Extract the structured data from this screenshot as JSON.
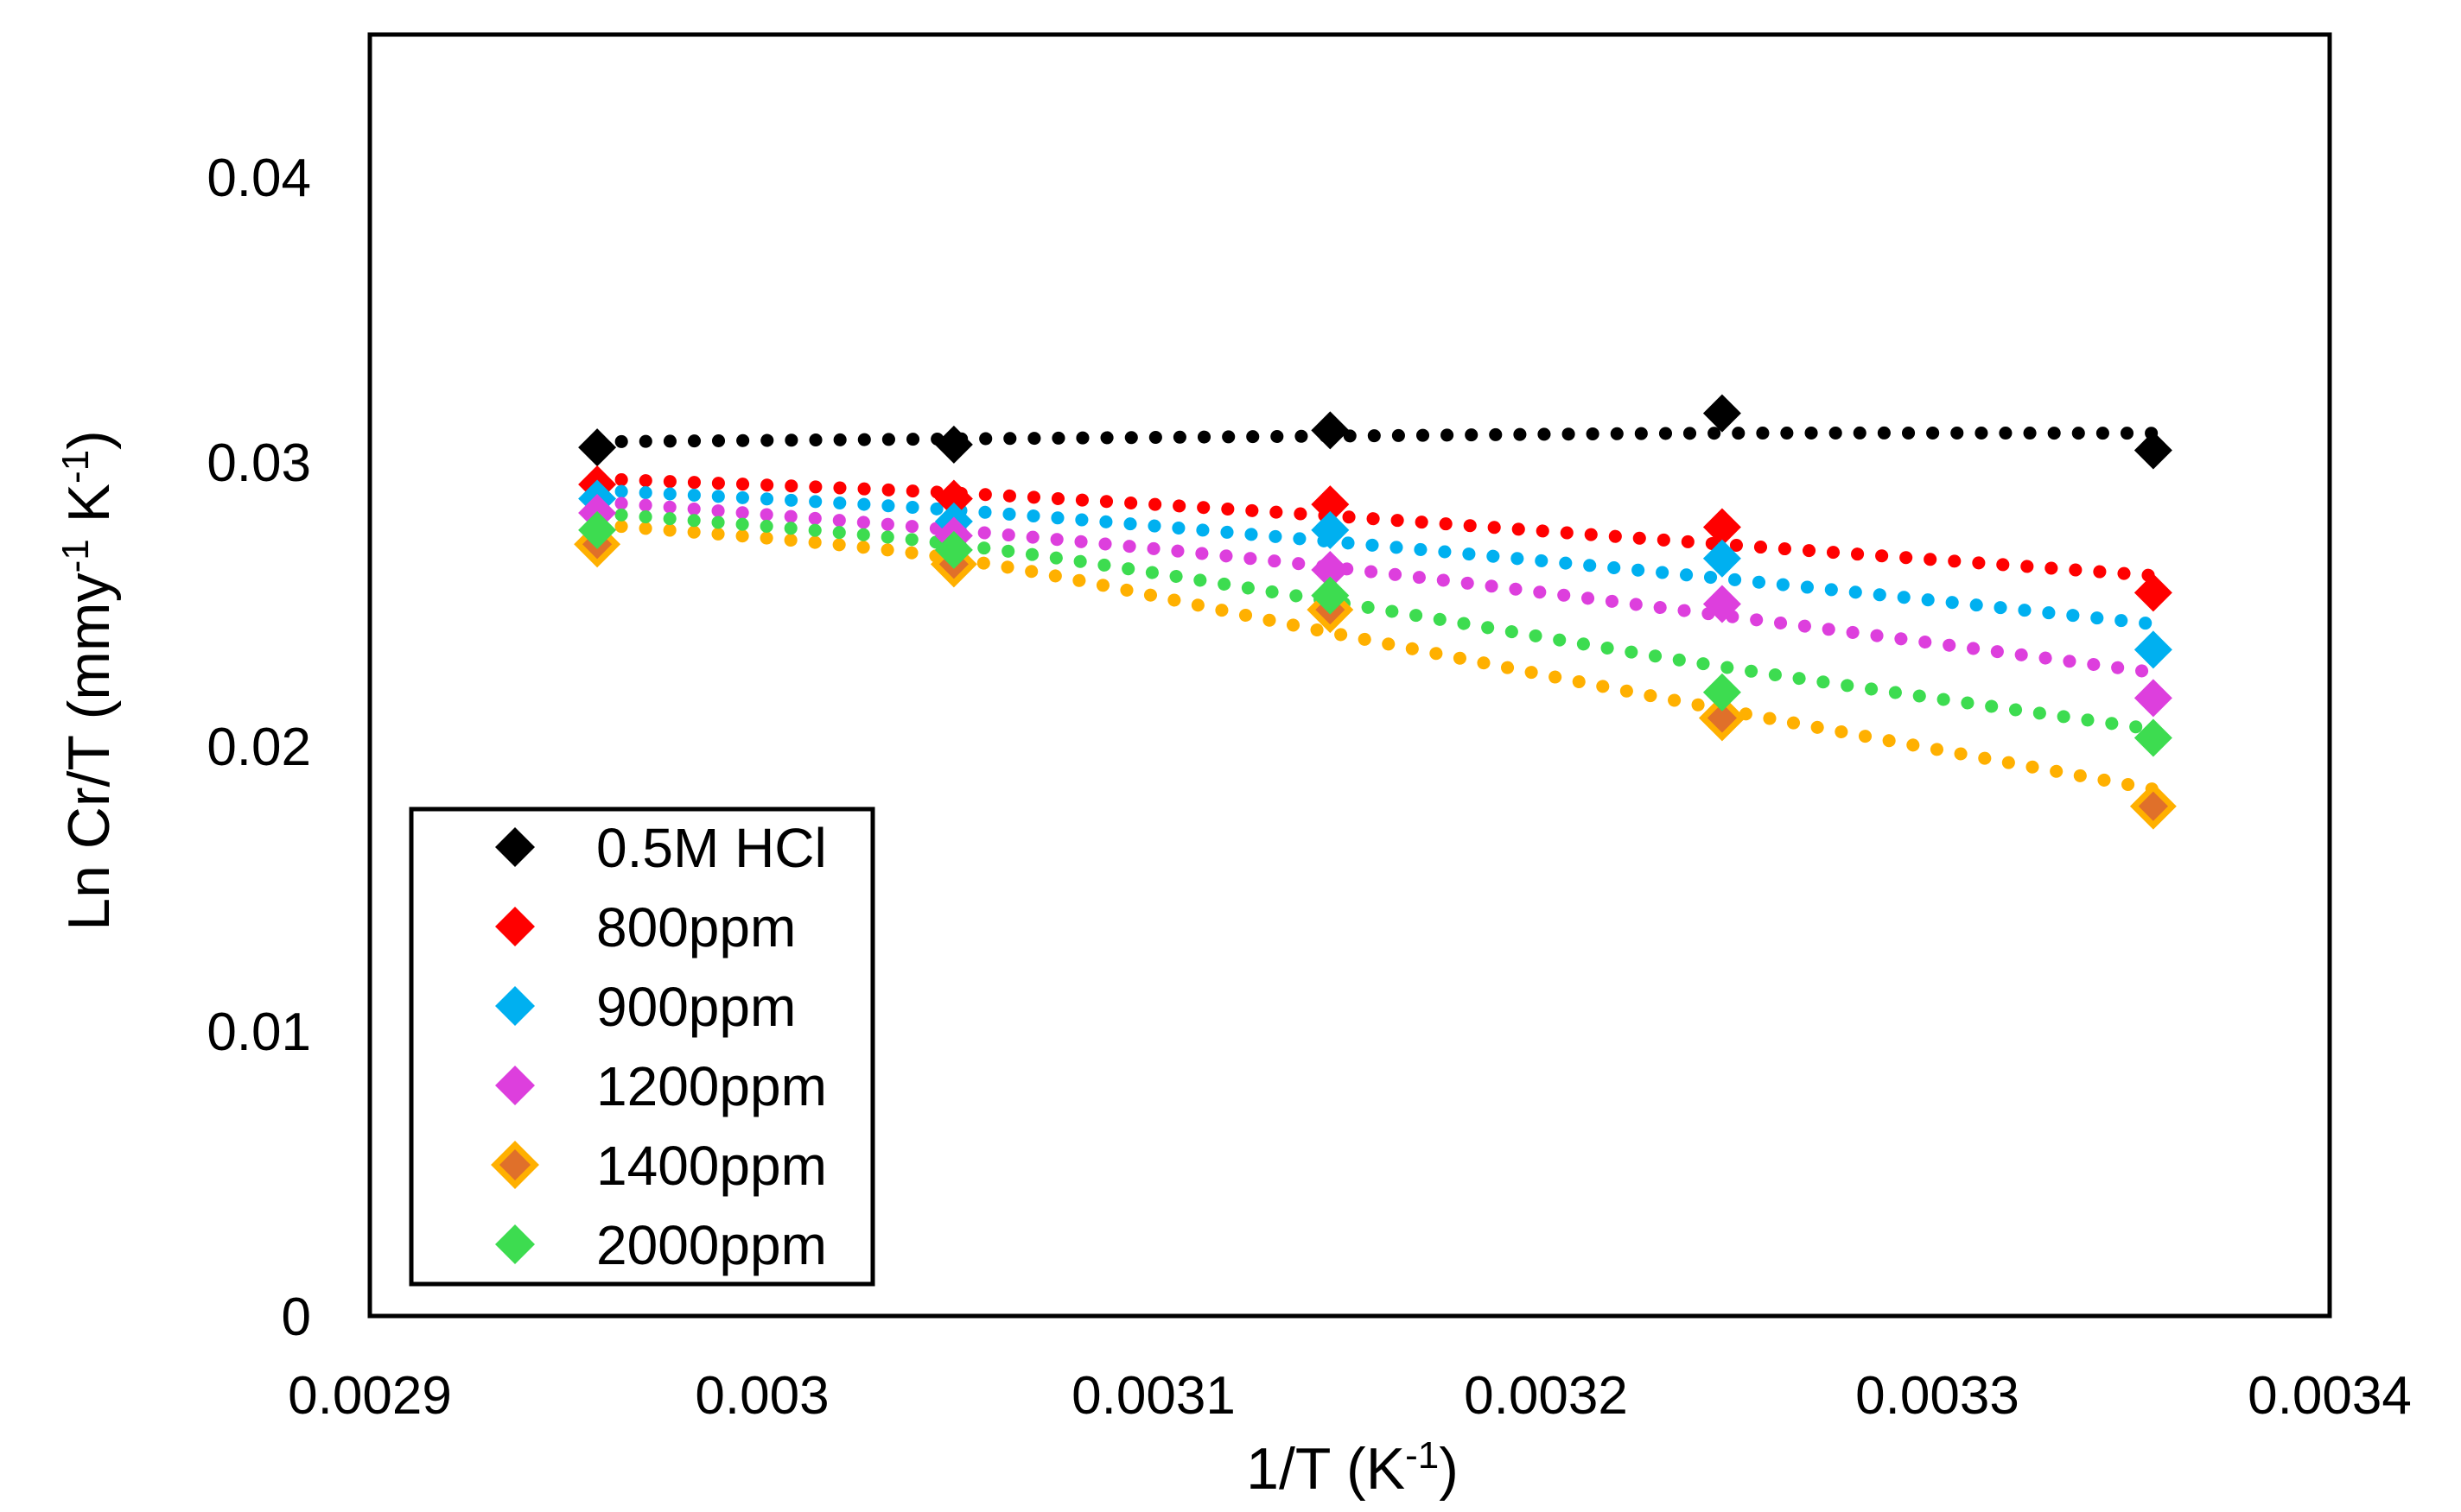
{
  "chart_data": {
    "type": "scatter",
    "title": "",
    "xlabel": "1/T (K",
    "xlabel_sup": "-1",
    "xlabel_end": ")",
    "ylabel": "Ln Cr/T (mmy",
    "ylabel_sup1": "-1",
    "ylabel_mid": " K",
    "ylabel_sup2": "-1",
    "ylabel_end": ")",
    "xlim": [
      0.0029,
      0.0034
    ],
    "ylim": [
      0,
      0.045
    ],
    "xticks": [
      0.0029,
      0.003,
      0.0031,
      0.0032,
      0.0033,
      0.0034
    ],
    "xtick_labels": [
      "0.0029",
      "0.003",
      "0.0031",
      "0.0032",
      "0.0033",
      "0.0034"
    ],
    "yticks": [
      0,
      0.01,
      0.02,
      0.03,
      0.04
    ],
    "ytick_labels": [
      "0",
      "0.01",
      "0.02",
      "0.03",
      "0.04"
    ],
    "legend_position": "bottom-left",
    "trendline": "dotted polynomial fit",
    "x": [
      0.002958,
      0.003049,
      0.003145,
      0.003245,
      0.003355
    ],
    "series": [
      {
        "name": "0.5M HCl",
        "color": "#000000",
        "values": [
          0.0305,
          0.0306,
          0.0311,
          0.0317,
          0.0304
        ],
        "trend": [
          0.0307,
          0.0308,
          0.0309,
          0.031,
          0.031
        ]
      },
      {
        "name": "800ppm",
        "color": "#ff0000",
        "values": [
          0.0292,
          0.0287,
          0.0285,
          0.0277,
          0.0254
        ],
        "trend": [
          0.0294,
          0.0289,
          0.0281,
          0.0271,
          0.026
        ]
      },
      {
        "name": "900ppm",
        "color": "#00b0f0",
        "values": [
          0.0287,
          0.0279,
          0.0276,
          0.0266,
          0.0234
        ],
        "trend": [
          0.029,
          0.0283,
          0.0272,
          0.0259,
          0.0243
        ]
      },
      {
        "name": "1200ppm",
        "color": "#dd3fdd",
        "values": [
          0.0282,
          0.0274,
          0.0262,
          0.025,
          0.0217
        ],
        "trend": [
          0.0286,
          0.0276,
          0.0263,
          0.0246,
          0.0226
        ]
      },
      {
        "name": "1400ppm",
        "color": "#ffb000",
        "values": [
          0.0271,
          0.0264,
          0.0248,
          0.021,
          0.0179
        ],
        "trend": [
          0.0278,
          0.0266,
          0.024,
          0.0213,
          0.0185
        ]
      },
      {
        "name": "2000ppm",
        "color": "#3ddc50",
        "values": [
          0.0276,
          0.0269,
          0.0253,
          0.0219,
          0.0203
        ],
        "trend": [
          0.0282,
          0.0271,
          0.0251,
          0.0228,
          0.0206
        ]
      }
    ]
  }
}
